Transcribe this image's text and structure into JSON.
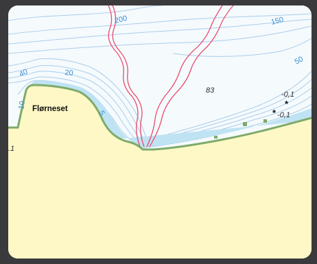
{
  "map": {
    "place_name": "Flørneset",
    "depth_contour_labels": [
      "200",
      "150",
      "50",
      "40",
      "20",
      "10",
      "5"
    ],
    "spot_depths": [
      "83",
      "-0,1",
      "-0,1"
    ],
    "edge_label": ".1",
    "hazard_symbols": [
      "rock-awash-icon",
      "rock-awash-icon"
    ],
    "colors": {
      "sea": "#f5fafd",
      "shallow_sea": "#bfe3f3",
      "land": "#fdf8c6",
      "shoreline": "#7eaa6a",
      "depth_contour": "#a9cdea",
      "depth_label": "#3d8fd6",
      "cable_lines": "#ea4a6b",
      "frame_background": "#3a3a3c"
    }
  }
}
